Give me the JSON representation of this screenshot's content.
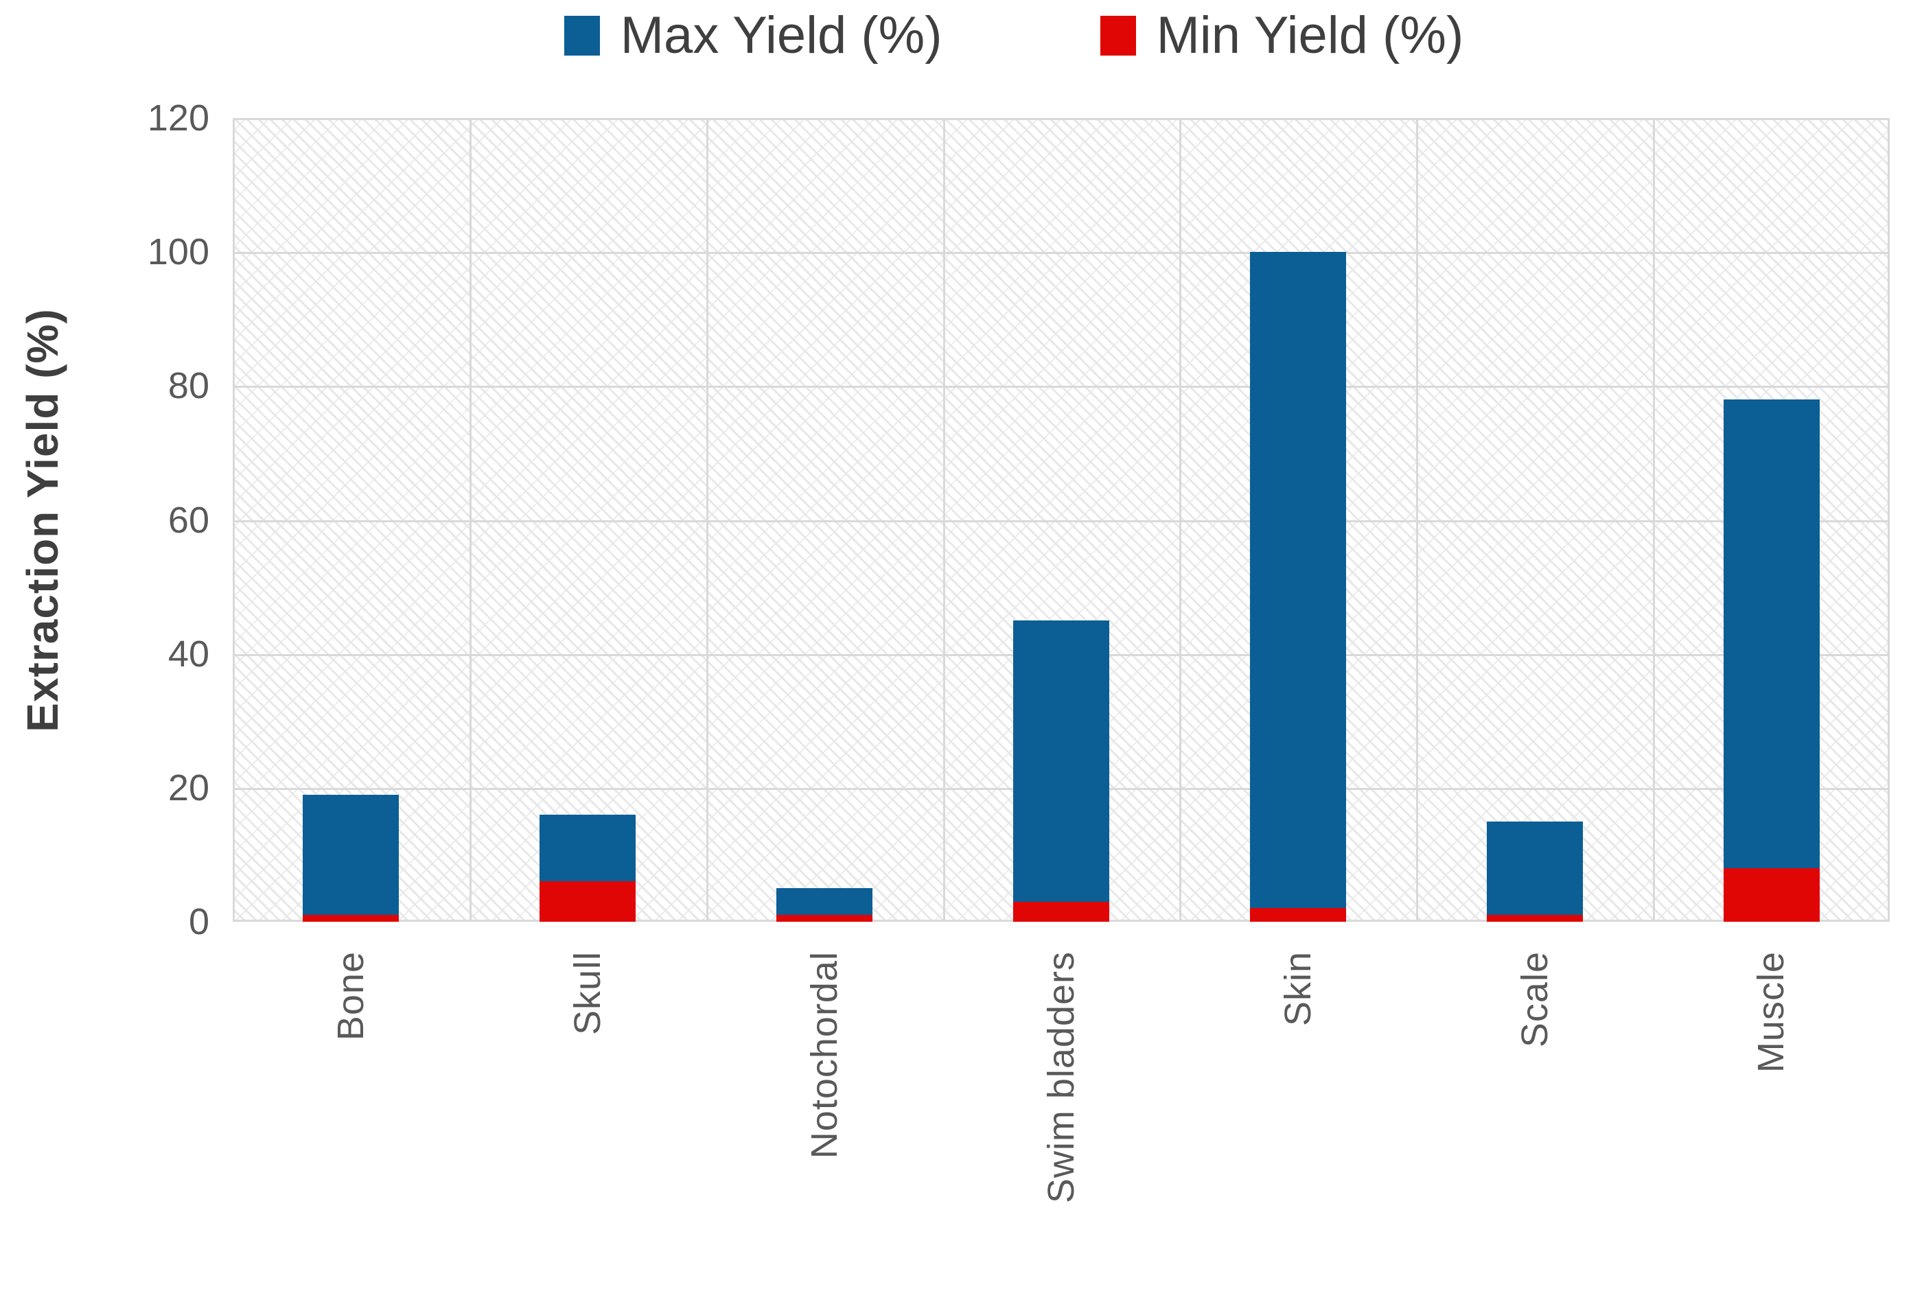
{
  "legend": {
    "items": [
      {
        "label": "Max Yield (%)",
        "color": "#0b5f95",
        "swatch_icon": "blue-square-icon"
      },
      {
        "label": "Min Yield (%)",
        "color": "#e00606",
        "swatch_icon": "red-square-icon"
      }
    ]
  },
  "chart_data": {
    "type": "bar",
    "bar_mode": "overlap",
    "title": "",
    "categories": [
      "Bone",
      "Skull",
      "Notochordal",
      "Swim bladders",
      "Skin",
      "Scale",
      "Muscle"
    ],
    "series": [
      {
        "name": "Max Yield (%)",
        "color": "#0b5f95",
        "values": [
          19,
          16,
          5,
          45,
          100,
          15,
          78
        ]
      },
      {
        "name": "Min Yield (%)",
        "color": "#e00606",
        "values": [
          1,
          6,
          1,
          3,
          2,
          1,
          8
        ]
      }
    ],
    "xlabel": "",
    "ylabel": "Extraction Yield (%)",
    "ylim": [
      0,
      120
    ],
    "yticks": [
      0,
      20,
      40,
      60,
      80,
      100,
      120
    ],
    "grid": true,
    "legend_position": "top",
    "plot_background": "diagonal-hatch-pattern",
    "gridline_color": "#d9d9d9",
    "tick_label_color": "#595959",
    "axis_title_color": "#3f3f3f"
  }
}
